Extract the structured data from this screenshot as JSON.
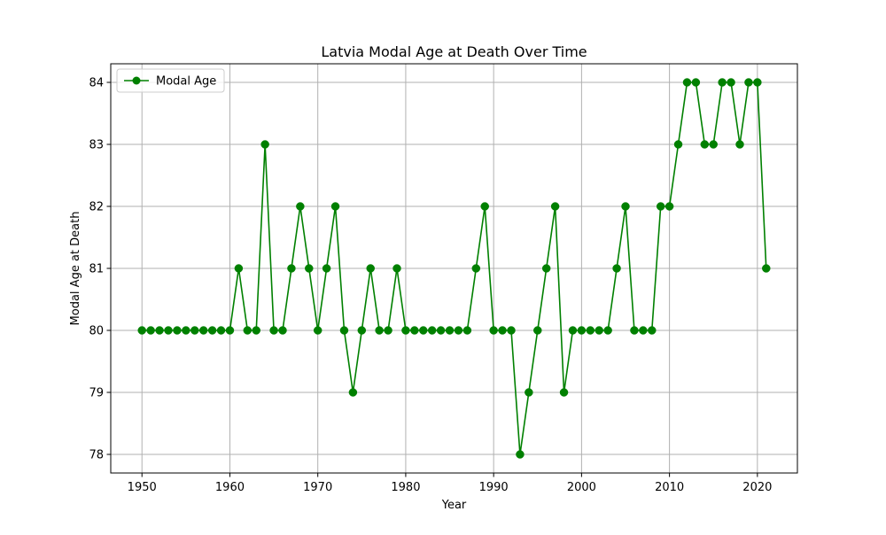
{
  "chart_data": {
    "type": "line",
    "title": "Latvia Modal Age at Death Over Time",
    "xlabel": "Year",
    "ylabel": "Modal Age at Death",
    "xlim": [
      1946.45,
      2024.55
    ],
    "ylim": [
      77.7,
      84.3
    ],
    "xticks": [
      1950,
      1960,
      1970,
      1980,
      1990,
      2000,
      2010,
      2020
    ],
    "yticks": [
      78,
      79,
      80,
      81,
      82,
      83,
      84
    ],
    "grid": true,
    "legend_position": "top-left",
    "colors": {
      "series": "#008000",
      "grid": "#b0b0b0",
      "axes": "#000000"
    },
    "x": [
      1950,
      1951,
      1952,
      1953,
      1954,
      1955,
      1956,
      1957,
      1958,
      1959,
      1960,
      1961,
      1962,
      1963,
      1964,
      1965,
      1966,
      1967,
      1968,
      1969,
      1970,
      1971,
      1972,
      1973,
      1974,
      1975,
      1976,
      1977,
      1978,
      1979,
      1980,
      1981,
      1982,
      1983,
      1984,
      1985,
      1986,
      1987,
      1988,
      1989,
      1990,
      1991,
      1992,
      1993,
      1994,
      1995,
      1996,
      1997,
      1998,
      1999,
      2000,
      2001,
      2002,
      2003,
      2004,
      2005,
      2006,
      2007,
      2008,
      2009,
      2010,
      2011,
      2012,
      2013,
      2014,
      2015,
      2016,
      2017,
      2018,
      2019,
      2020,
      2021
    ],
    "series": [
      {
        "name": "Modal Age",
        "marker": "circle",
        "values": [
          80,
          80,
          80,
          80,
          80,
          80,
          80,
          80,
          80,
          80,
          80,
          81,
          80,
          80,
          83,
          80,
          80,
          81,
          82,
          81,
          80,
          81,
          82,
          80,
          79,
          80,
          81,
          80,
          80,
          81,
          80,
          80,
          80,
          80,
          80,
          80,
          80,
          80,
          81,
          82,
          80,
          80,
          80,
          78,
          79,
          80,
          81,
          82,
          79,
          80,
          80,
          80,
          80,
          80,
          81,
          82,
          80,
          80,
          80,
          82,
          82,
          83,
          84,
          84,
          83,
          83,
          84,
          84,
          83,
          84,
          84,
          81
        ]
      }
    ]
  }
}
